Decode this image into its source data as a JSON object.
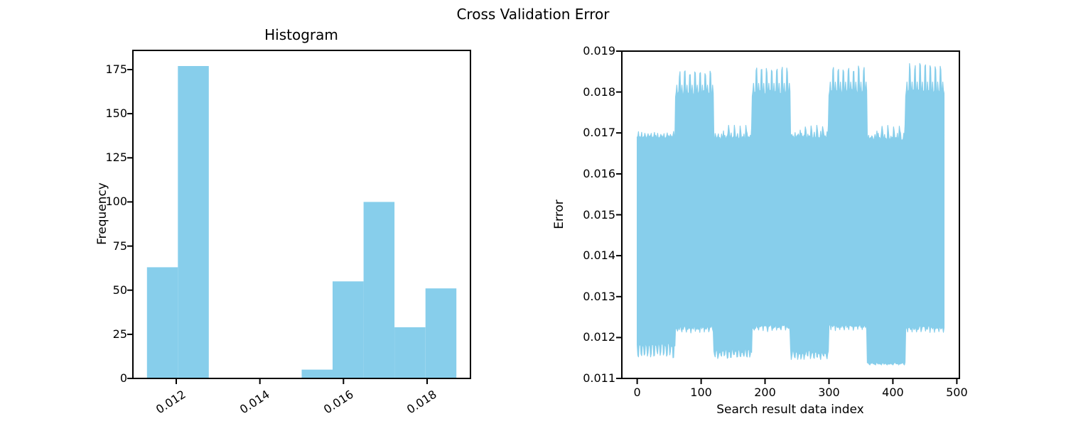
{
  "figure": {
    "suptitle": "Cross Validation Error",
    "background_color": "#ffffff",
    "text_color": "#000000",
    "accent_color": "#87CEEB",
    "spine_color": "#000000"
  },
  "chart_data": [
    {
      "id": "histogram",
      "type": "bar",
      "title": "Histogram",
      "xlabel": "",
      "ylabel": "Frequency",
      "bar_color": "#87CEEB",
      "bin_edges": [
        0.0113,
        0.01204,
        0.01278,
        0.01352,
        0.01426,
        0.015,
        0.01574,
        0.01648,
        0.01722,
        0.01796,
        0.0187
      ],
      "counts": [
        63,
        177,
        0,
        0,
        0,
        5,
        55,
        100,
        29,
        51
      ],
      "xlim": [
        0.010964,
        0.019036
      ],
      "ylim": [
        0,
        185.85
      ],
      "grid": false,
      "xticks": {
        "values": [
          0.012,
          0.014,
          0.016,
          0.018
        ],
        "labels": [
          "0.012",
          "0.014",
          "0.016",
          "0.018"
        ],
        "rotation_deg": -33
      },
      "yticks": {
        "values": [
          0,
          25,
          50,
          75,
          100,
          125,
          150,
          175
        ],
        "labels": [
          "0",
          "25",
          "50",
          "75",
          "100",
          "125",
          "150",
          "175"
        ]
      }
    },
    {
      "id": "cv-error-signal",
      "type": "line",
      "title": "",
      "xlabel": "Search result data index",
      "ylabel": "Error",
      "line_color": "#87CEEB",
      "n_points": 481,
      "x_range": [
        0,
        480
      ],
      "xlim": [
        -24,
        504
      ],
      "ylim": [
        0.011,
        0.019
      ],
      "grid": false,
      "xticks": {
        "values": [
          0,
          100,
          200,
          300,
          400,
          500
        ],
        "labels": [
          "0",
          "100",
          "200",
          "300",
          "400",
          "500"
        ]
      },
      "yticks": {
        "values": [
          0.011,
          0.012,
          0.013,
          0.014,
          0.015,
          0.016,
          0.017,
          0.018,
          0.019
        ],
        "labels": [
          "0.011",
          "0.012",
          "0.013",
          "0.014",
          "0.015",
          "0.016",
          "0.017",
          "0.018",
          "0.019"
        ]
      },
      "pattern": "dense high-frequency oscillation filling the band between lower and upper envelopes; regime alternates every 60 indices between quiet and burst",
      "envelope_segments": [
        {
          "start": 0,
          "end": 60,
          "burst": false,
          "lower_flat": false,
          "upper_base": 0.0169,
          "upper_peak": 0.01701,
          "lower_base": 0.01182,
          "lower_peak": 0.0115
        },
        {
          "start": 60,
          "end": 120,
          "burst": true,
          "lower_flat": false,
          "upper_base": 0.01798,
          "upper_peak": 0.01852,
          "lower_base": 0.01224,
          "lower_peak": 0.01211
        },
        {
          "start": 120,
          "end": 180,
          "burst": false,
          "lower_flat": false,
          "upper_base": 0.01688,
          "upper_peak": 0.01719,
          "lower_base": 0.01168,
          "lower_peak": 0.01148
        },
        {
          "start": 180,
          "end": 240,
          "burst": true,
          "lower_flat": false,
          "upper_base": 0.018,
          "upper_peak": 0.01861,
          "lower_base": 0.01227,
          "lower_peak": 0.01214
        },
        {
          "start": 240,
          "end": 300,
          "burst": false,
          "lower_flat": false,
          "upper_base": 0.0169,
          "upper_peak": 0.01721,
          "lower_base": 0.01165,
          "lower_peak": 0.01146
        },
        {
          "start": 300,
          "end": 360,
          "burst": true,
          "lower_flat": false,
          "upper_base": 0.01802,
          "upper_peak": 0.01866,
          "lower_base": 0.01228,
          "lower_peak": 0.01216
        },
        {
          "start": 360,
          "end": 420,
          "burst": false,
          "lower_flat": true,
          "upper_base": 0.01686,
          "upper_peak": 0.0172,
          "lower_base": 0.01137,
          "lower_peak": 0.01133
        },
        {
          "start": 420,
          "end": 480,
          "burst": true,
          "lower_flat": false,
          "upper_base": 0.018,
          "upper_peak": 0.0187,
          "lower_base": 0.01224,
          "lower_peak": 0.01212
        }
      ]
    }
  ]
}
